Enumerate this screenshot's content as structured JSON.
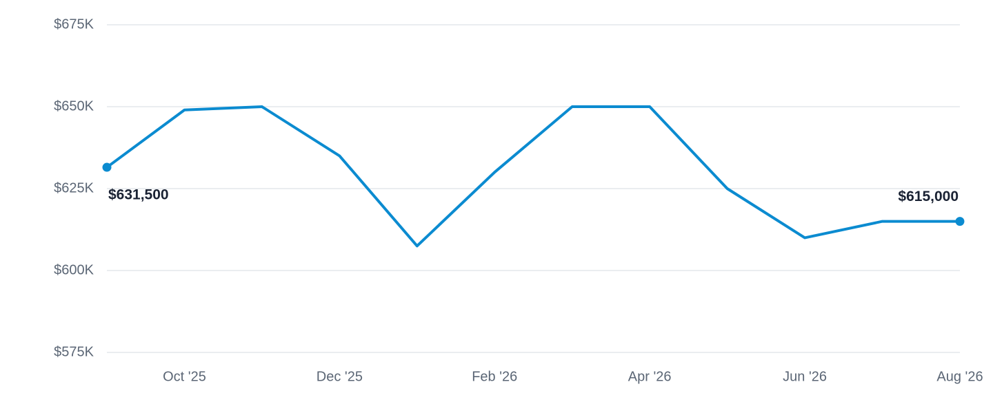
{
  "chart_data": {
    "type": "line",
    "categories": [
      null,
      "Oct '25",
      null,
      "Dec '25",
      null,
      "Feb '26",
      null,
      "Apr '26",
      null,
      "Jun '26",
      null,
      "Aug '26"
    ],
    "series": [
      {
        "color": "#0b8bd0",
        "values": [
          631500,
          649000,
          650000,
          635000,
          607500,
          630000,
          650000,
          650000,
          625000,
          610000,
          615000,
          615000
        ],
        "value_labels": [
          "$631,500",
          null,
          null,
          null,
          null,
          null,
          null,
          null,
          null,
          null,
          null,
          "$615,000"
        ]
      }
    ],
    "ylim": [
      575000,
      675000
    ],
    "yticks": [
      {
        "value": 575000,
        "label": "$575K"
      },
      {
        "value": 600000,
        "label": "$600K"
      },
      {
        "value": 625000,
        "label": "$625K"
      },
      {
        "value": 650000,
        "label": "$650K"
      },
      {
        "value": 675000,
        "label": "$675K"
      }
    ],
    "grid": true
  }
}
